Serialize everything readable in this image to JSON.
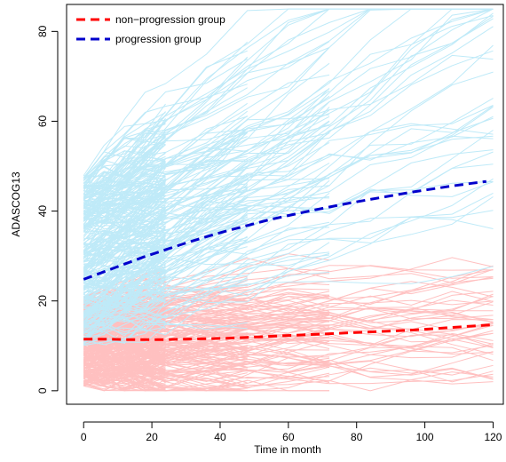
{
  "chart_data": {
    "type": "line",
    "title": "",
    "xlabel": "Time in month",
    "ylabel": "ADASCOG13",
    "xlim": [
      -5,
      123
    ],
    "ylim": [
      -3,
      86
    ],
    "x_ticks": [
      0,
      20,
      40,
      60,
      80,
      100,
      120
    ],
    "y_ticks": [
      0,
      20,
      40,
      60,
      80
    ],
    "grid": false,
    "legend": {
      "placement": "top-left",
      "entries": [
        {
          "label": "non−progression group",
          "color": "#ff0000",
          "style": "dashed"
        },
        {
          "label": "progression group",
          "color": "#0000cc",
          "style": "dashed"
        }
      ]
    },
    "series": [
      {
        "name": "non−progression group",
        "color": "#ff0000",
        "style": "dashed",
        "x": [
          0,
          6,
          12,
          18,
          24,
          30,
          36,
          42,
          48,
          54,
          60,
          66,
          72,
          78,
          84,
          90,
          96,
          102,
          108,
          114,
          120
        ],
        "y": [
          11.5,
          11.5,
          11.4,
          11.4,
          11.4,
          11.5,
          11.6,
          11.7,
          11.9,
          12.1,
          12.3,
          12.5,
          12.7,
          12.9,
          13.1,
          13.3,
          13.5,
          13.8,
          14.1,
          14.4,
          14.7
        ]
      },
      {
        "name": "progression group",
        "color": "#0000cc",
        "style": "dashed",
        "x": [
          0,
          6,
          12,
          18,
          24,
          30,
          36,
          42,
          48,
          54,
          60,
          66,
          72,
          78,
          84,
          90,
          96,
          102,
          108,
          114,
          118
        ],
        "y": [
          24.8,
          26.5,
          28.2,
          29.9,
          31.4,
          32.9,
          34.3,
          35.6,
          36.8,
          38.0,
          39.0,
          40.0,
          40.9,
          41.8,
          42.6,
          43.4,
          44.2,
          44.9,
          45.6,
          46.2,
          46.6
        ]
      }
    ],
    "background_trajectories": [
      {
        "group": "non−progression group",
        "color": "#ffc0c0",
        "count": 380,
        "baseline_range": [
          1,
          21
        ],
        "max_value": 35
      },
      {
        "group": "progression group",
        "color": "#bfeaf8",
        "count": 330,
        "baseline_range": [
          10,
          48
        ],
        "max_value": 85
      }
    ]
  }
}
